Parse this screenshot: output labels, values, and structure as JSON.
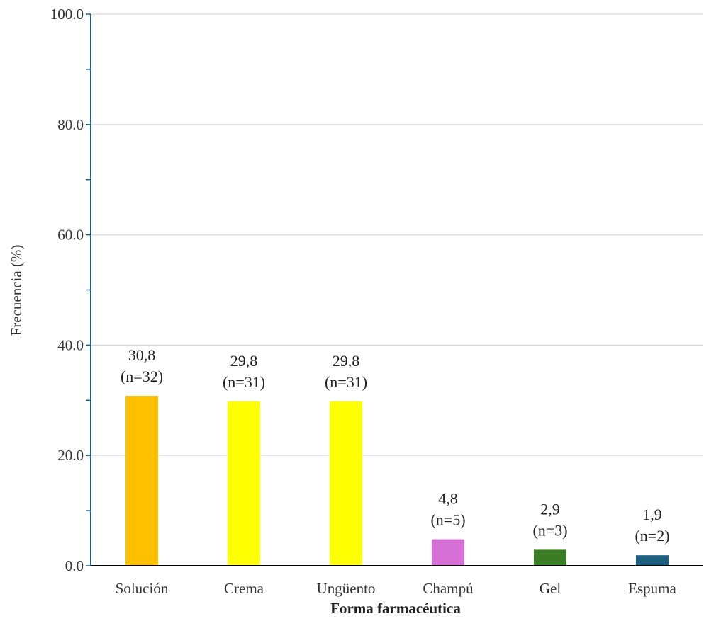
{
  "chart_data": {
    "type": "bar",
    "title": "",
    "xlabel": "Forma farmacéutica",
    "ylabel": "Frecuencia (%)",
    "ylim": [
      0,
      100
    ],
    "yticks": [
      "0.0",
      "20.0",
      "40.0",
      "60.0",
      "80.0",
      "100.0"
    ],
    "grid": true,
    "categories": [
      "Solución",
      "Crema",
      "Ungüento",
      "Champú",
      "Gel",
      "Espuma"
    ],
    "values": [
      30.8,
      29.8,
      29.8,
      4.8,
      2.9,
      1.9
    ],
    "counts": [
      "(n=32)",
      "(n=31)",
      "(n=31)",
      "(n=5)",
      "(n=3)",
      "(n=2)"
    ],
    "value_labels": [
      "30,8",
      "29,8",
      "29,8",
      "4,8",
      "2,9",
      "1,9"
    ],
    "colors": [
      "#FFC000",
      "#FFFF00",
      "#FFFF00",
      "#D670D6",
      "#3A7D22",
      "#1B5E80"
    ],
    "axis_color": "#1B5E80",
    "grid_color": "#D9D9D9"
  }
}
